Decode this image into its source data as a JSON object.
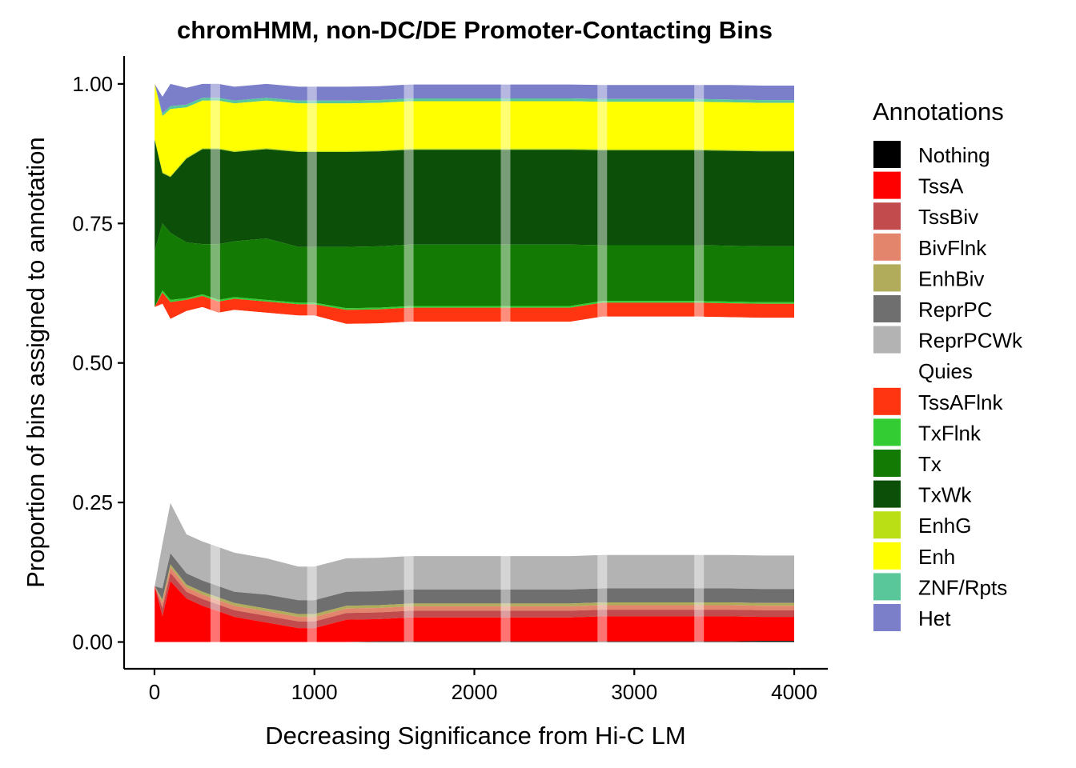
{
  "chart_data": {
    "type": "area",
    "title": "chromHMM, non-DC/DE Promoter-Contacting Bins",
    "xlabel": "Decreasing Significance from Hi-C LM",
    "ylabel": "Proportion of bins assigned to annotation",
    "xlim": [
      -190,
      4210
    ],
    "ylim": [
      -0.048,
      1.05
    ],
    "x_ticks": [
      0,
      1000,
      2000,
      3000,
      4000
    ],
    "x_tick_labels": [
      "0",
      "1000",
      "2000",
      "3000",
      "4000"
    ],
    "y_ticks": [
      0,
      0.25,
      0.5,
      0.75,
      1.0
    ],
    "y_tick_labels": [
      "0.00",
      "0.25",
      "0.50",
      "0.75",
      "1.00"
    ],
    "stacking": "stacked proportions, first state at top (Nothing at bottom)",
    "x": [
      1,
      50,
      100,
      200,
      300,
      400,
      500,
      700,
      900,
      1000,
      1200,
      1400,
      1600,
      1800,
      2000,
      2200,
      2400,
      2600,
      2800,
      3000,
      3200,
      3400,
      3600,
      3800,
      4000
    ],
    "series": [
      {
        "name": "Het",
        "color": "#7B7FC9",
        "values": [
          0.0,
          0.03,
          0.04,
          0.03,
          0.025,
          0.025,
          0.025,
          0.025,
          0.025,
          0.025,
          0.025,
          0.025,
          0.025,
          0.025,
          0.025,
          0.025,
          0.025,
          0.025,
          0.025,
          0.025,
          0.025,
          0.025,
          0.026,
          0.026,
          0.026
        ]
      },
      {
        "name": "ZNF/Rpts",
        "color": "#5AC79A",
        "values": [
          0.0,
          0.005,
          0.005,
          0.005,
          0.005,
          0.005,
          0.005,
          0.005,
          0.005,
          0.005,
          0.005,
          0.005,
          0.005,
          0.005,
          0.005,
          0.005,
          0.005,
          0.005,
          0.005,
          0.005,
          0.005,
          0.005,
          0.005,
          0.005,
          0.005
        ]
      },
      {
        "name": "Enh",
        "color": "#FFFF00",
        "values": [
          0.1,
          0.1,
          0.12,
          0.09,
          0.085,
          0.085,
          0.085,
          0.085,
          0.085,
          0.085,
          0.085,
          0.085,
          0.085,
          0.085,
          0.085,
          0.085,
          0.085,
          0.085,
          0.085,
          0.085,
          0.085,
          0.085,
          0.085,
          0.085,
          0.085
        ]
      },
      {
        "name": "EnhG",
        "color": "#BADF14",
        "values": [
          0.0,
          0.002,
          0.002,
          0.002,
          0.002,
          0.002,
          0.002,
          0.002,
          0.002,
          0.002,
          0.002,
          0.002,
          0.002,
          0.002,
          0.002,
          0.002,
          0.002,
          0.002,
          0.002,
          0.002,
          0.002,
          0.002,
          0.002,
          0.002,
          0.002
        ]
      },
      {
        "name": "TxWk",
        "color": "#0B4F09",
        "values": [
          0.2,
          0.09,
          0.1,
          0.15,
          0.17,
          0.17,
          0.16,
          0.16,
          0.17,
          0.17,
          0.17,
          0.17,
          0.17,
          0.17,
          0.17,
          0.17,
          0.17,
          0.17,
          0.17,
          0.17,
          0.17,
          0.17,
          0.17,
          0.17,
          0.17
        ]
      },
      {
        "name": "Tx",
        "color": "#137B03",
        "values": [
          0.1,
          0.12,
          0.12,
          0.1,
          0.09,
          0.1,
          0.1,
          0.11,
          0.1,
          0.1,
          0.11,
          0.11,
          0.11,
          0.11,
          0.11,
          0.11,
          0.11,
          0.11,
          0.1,
          0.1,
          0.1,
          0.1,
          0.1,
          0.1,
          0.1
        ]
      },
      {
        "name": "TxFlnk",
        "color": "#33CC33",
        "values": [
          0.0,
          0.004,
          0.004,
          0.003,
          0.003,
          0.003,
          0.003,
          0.003,
          0.003,
          0.003,
          0.003,
          0.003,
          0.003,
          0.003,
          0.003,
          0.003,
          0.003,
          0.003,
          0.003,
          0.003,
          0.003,
          0.003,
          0.003,
          0.003,
          0.003
        ]
      },
      {
        "name": "TssAFlnk",
        "color": "#FF3411",
        "values": [
          0.0,
          0.02,
          0.03,
          0.02,
          0.02,
          0.02,
          0.02,
          0.02,
          0.02,
          0.02,
          0.025,
          0.025,
          0.025,
          0.025,
          0.025,
          0.025,
          0.025,
          0.025,
          0.025,
          0.025,
          0.025,
          0.025,
          0.025,
          0.025,
          0.025
        ]
      },
      {
        "name": "Quies",
        "color": "#FFFFFF",
        "values": [
          0.5,
          0.43,
          0.33,
          0.4,
          0.42,
          0.42,
          0.435,
          0.44,
          0.45,
          0.45,
          0.42,
          0.42,
          0.42,
          0.42,
          0.42,
          0.42,
          0.42,
          0.42,
          0.427,
          0.427,
          0.427,
          0.427,
          0.426,
          0.426,
          0.426
        ]
      },
      {
        "name": "ReprPCWk",
        "color": "#B3B3B3",
        "values": [
          0.0,
          0.08,
          0.09,
          0.07,
          0.07,
          0.07,
          0.07,
          0.065,
          0.06,
          0.06,
          0.06,
          0.06,
          0.06,
          0.06,
          0.06,
          0.06,
          0.06,
          0.06,
          0.06,
          0.06,
          0.06,
          0.06,
          0.06,
          0.06,
          0.06
        ]
      },
      {
        "name": "ReprPC",
        "color": "#6F6F6F",
        "values": [
          0.0,
          0.02,
          0.02,
          0.02,
          0.02,
          0.02,
          0.02,
          0.025,
          0.025,
          0.025,
          0.025,
          0.025,
          0.025,
          0.025,
          0.025,
          0.025,
          0.025,
          0.025,
          0.025,
          0.025,
          0.025,
          0.025,
          0.025,
          0.025,
          0.025
        ]
      },
      {
        "name": "EnhBiv",
        "color": "#B0AC5C",
        "values": [
          0.0,
          0.005,
          0.005,
          0.005,
          0.005,
          0.005,
          0.005,
          0.005,
          0.005,
          0.005,
          0.005,
          0.005,
          0.005,
          0.005,
          0.005,
          0.005,
          0.005,
          0.005,
          0.005,
          0.005,
          0.005,
          0.005,
          0.005,
          0.005,
          0.005
        ]
      },
      {
        "name": "BivFlnk",
        "color": "#E2856C",
        "values": [
          0.0,
          0.01,
          0.01,
          0.008,
          0.008,
          0.008,
          0.008,
          0.008,
          0.008,
          0.008,
          0.008,
          0.008,
          0.008,
          0.008,
          0.008,
          0.008,
          0.008,
          0.008,
          0.008,
          0.008,
          0.008,
          0.008,
          0.008,
          0.008,
          0.008
        ]
      },
      {
        "name": "TssBiv",
        "color": "#C24B4E",
        "values": [
          0.0,
          0.015,
          0.015,
          0.012,
          0.012,
          0.012,
          0.012,
          0.012,
          0.012,
          0.012,
          0.012,
          0.012,
          0.012,
          0.012,
          0.012,
          0.012,
          0.012,
          0.012,
          0.012,
          0.012,
          0.012,
          0.012,
          0.012,
          0.012,
          0.012
        ]
      },
      {
        "name": "TssA",
        "color": "#FF0000",
        "values": [
          0.1,
          0.046,
          0.109,
          0.078,
          0.065,
          0.055,
          0.045,
          0.035,
          0.025,
          0.025,
          0.04,
          0.04,
          0.043,
          0.043,
          0.043,
          0.043,
          0.043,
          0.043,
          0.045,
          0.045,
          0.045,
          0.045,
          0.045,
          0.043,
          0.043
        ]
      },
      {
        "name": "Nothing",
        "color": "#000000",
        "values": [
          0.0,
          0.0,
          0.0,
          0.0,
          0.0,
          0.0,
          0.0,
          0.0,
          0.0,
          0.0,
          0.0,
          0.001,
          0.001,
          0.001,
          0.001,
          0.001,
          0.001,
          0.001,
          0.001,
          0.001,
          0.001,
          0.001,
          0.001,
          0.002,
          0.002
        ]
      }
    ],
    "legend": {
      "title": "Annotations",
      "placement": "right",
      "items": [
        {
          "label": "Nothing",
          "color": "#000000"
        },
        {
          "label": "TssA",
          "color": "#FF0000"
        },
        {
          "label": "TssBiv",
          "color": "#C24B4E"
        },
        {
          "label": "BivFlnk",
          "color": "#E2856C"
        },
        {
          "label": "EnhBiv",
          "color": "#B0AC5C"
        },
        {
          "label": "ReprPC",
          "color": "#6F6F6F"
        },
        {
          "label": "ReprPCWk",
          "color": "#B3B3B3"
        },
        {
          "label": "Quies",
          "color": "#FFFFFF"
        },
        {
          "label": "TssAFlnk",
          "color": "#FF3411"
        },
        {
          "label": "TxFlnk",
          "color": "#33CC33"
        },
        {
          "label": "Tx",
          "color": "#137B03"
        },
        {
          "label": "TxWk",
          "color": "#0B4F09"
        },
        {
          "label": "EnhG",
          "color": "#BADF14"
        },
        {
          "label": "Enh",
          "color": "#FFFF00"
        },
        {
          "label": "ZNF/Rpts",
          "color": "#5AC79A"
        },
        {
          "label": "Het",
          "color": "#7B7FC9"
        }
      ]
    },
    "highlight_bands": {
      "color": "#FFFFFF",
      "opacity": 0.45,
      "x_centers": [
        380,
        985,
        1590,
        2195,
        2800,
        3405
      ]
    },
    "grid": false
  }
}
